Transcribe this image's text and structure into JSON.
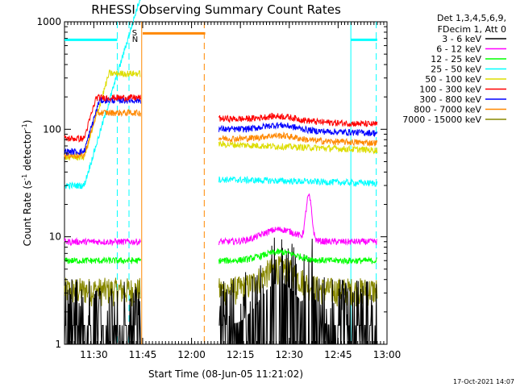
{
  "chart_data": {
    "type": "line",
    "title": "RHESSI Observing Summary Count Rates",
    "xlabel": "Start Time (08-Jun-05 11:21:02)",
    "ylabel_main": "Count Rate (s",
    "ylabel_sup1": "-1",
    "ylabel_mid": " detector",
    "ylabel_sup2": "-1",
    "ylabel_end": ")",
    "xlim": [
      11.35,
      13.0
    ],
    "ylim": [
      1,
      1000
    ],
    "yscale": "log",
    "x_ticks": [
      {
        "x": 11.5,
        "label": "11:30"
      },
      {
        "x": 11.75,
        "label": "11:45"
      },
      {
        "x": 12.0,
        "label": "12:00"
      },
      {
        "x": 12.25,
        "label": "12:15"
      },
      {
        "x": 12.5,
        "label": "12:30"
      },
      {
        "x": 12.75,
        "label": "12:45"
      },
      {
        "x": 13.0,
        "label": "13:00"
      }
    ],
    "y_ticks": [
      {
        "y": 1,
        "label": "1"
      },
      {
        "y": 10,
        "label": "10"
      },
      {
        "y": 100,
        "label": "100"
      },
      {
        "y": 1000,
        "label": "1000"
      }
    ],
    "legend_header": [
      "Det 1,3,4,5,6,9,",
      "FDecim 1, Att 0"
    ],
    "series": [
      {
        "name": "3 - 6 keV",
        "color": "#000000"
      },
      {
        "name": "6 - 12 keV",
        "color": "#ff00ff"
      },
      {
        "name": "12 - 25 keV",
        "color": "#00ff00"
      },
      {
        "name": "25 - 50 keV",
        "color": "#00ffff"
      },
      {
        "name": "50 - 100 keV",
        "color": "#dddd00"
      },
      {
        "name": "100 - 300 keV",
        "color": "#ff0000"
      },
      {
        "name": "300 - 800 keV",
        "color": "#0000ff"
      },
      {
        "name": "800 - 7000 keV",
        "color": "#ff8800"
      },
      {
        "name": "7000 - 15000 keV",
        "color": "#888800"
      }
    ],
    "gap": [
      11.8,
      12.13
    ],
    "saa_marks": [
      {
        "label": "S",
        "x": 11.72,
        "color": "#ff8800"
      },
      {
        "label": "N",
        "x": 11.72,
        "color": "#00ffff"
      }
    ],
    "annotation_lines": [
      {
        "x": 11.62,
        "color": "#00ffff",
        "style": "dashed"
      },
      {
        "x": 11.68,
        "color": "#00ffff",
        "style": "dashed"
      },
      {
        "x": 11.745,
        "color": "#ff8800",
        "style": "solid"
      },
      {
        "x": 12.065,
        "color": "#ff8800",
        "style": "dashed"
      },
      {
        "x": 12.815,
        "color": "#00ffff",
        "style": "solid"
      },
      {
        "x": 12.945,
        "color": "#00ffff",
        "style": "dashed"
      }
    ],
    "night_bars": [
      {
        "x0": 11.35,
        "x1": 11.62,
        "y": 680,
        "color": "#00ffff"
      },
      {
        "x0": 11.75,
        "x1": 12.07,
        "y": 780,
        "color": "#ff8800"
      },
      {
        "x0": 12.815,
        "x1": 12.95,
        "y": 680,
        "color": "#00ffff"
      }
    ],
    "timestamp": "17-Oct-2021 14:07"
  }
}
